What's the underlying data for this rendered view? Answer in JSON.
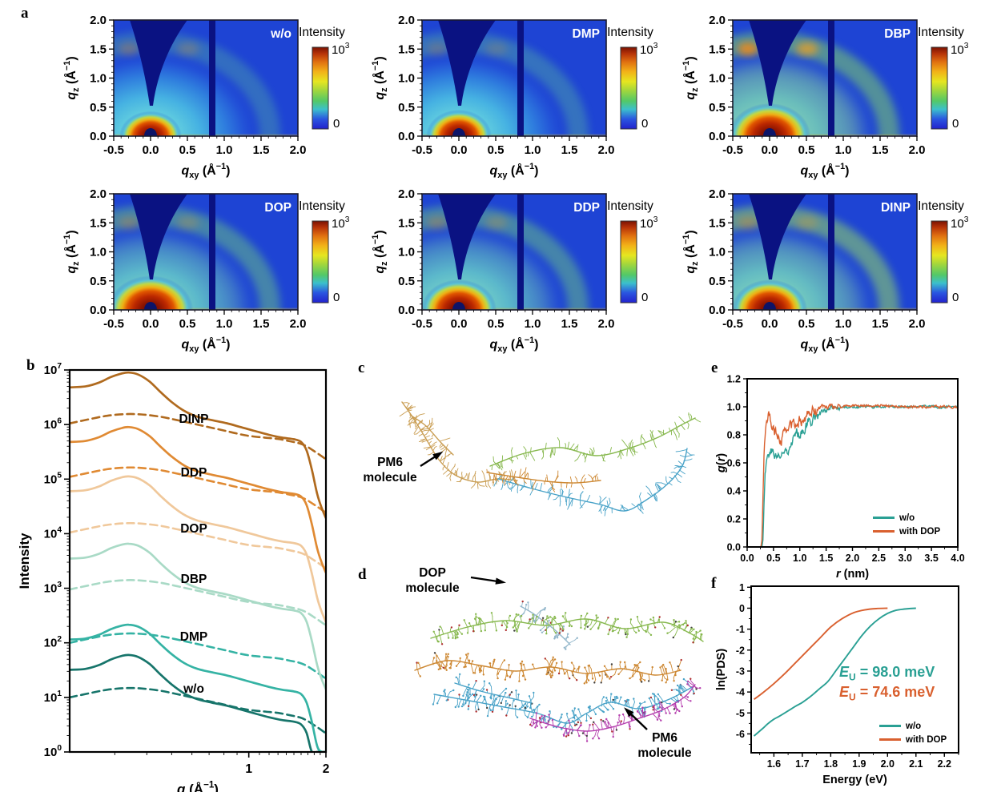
{
  "figure": {
    "panel_letters": {
      "a": "a",
      "b": "b",
      "c": "c",
      "d": "d",
      "e": "e",
      "f": "f"
    }
  },
  "giwaxs": {
    "samples": [
      "w/o",
      "DMP",
      "DBP",
      "DOP",
      "DDP",
      "DINP"
    ],
    "colorbar": {
      "title": "Intensity",
      "max_mantissa": "10",
      "max_exponent": "3",
      "min_label": "0"
    },
    "x_tick_labels": [
      "-0.5",
      "0.0",
      "0.5",
      "1.0",
      "1.5",
      "2.0"
    ],
    "y_tick_labels": [
      "0.0",
      "0.5",
      "1.0",
      "1.5",
      "2.0"
    ],
    "xlabel_parts": [
      [
        "q",
        "i"
      ],
      [
        "xy",
        "sub"
      ],
      [
        " (Å",
        "n"
      ],
      [
        "−1",
        "sup"
      ],
      [
        ")",
        "n"
      ]
    ],
    "ylabel_parts": [
      [
        "q",
        "i"
      ],
      [
        "z",
        "sub"
      ],
      [
        " (Å",
        "n"
      ],
      [
        "−1",
        "sup"
      ],
      [
        ")",
        "n"
      ]
    ]
  },
  "panel_c": {
    "annotation_line1": "PM6",
    "annotation_line2": "molecule"
  },
  "panel_d": {
    "dop_line1": "DOP",
    "dop_line2": "molecule",
    "pm6_line1": "PM6",
    "pm6_line2": "molecule"
  },
  "chart_data": [
    {
      "type": "heatmap",
      "panel": "a",
      "plots": [
        "w/o",
        "DMP",
        "DBP",
        "DOP",
        "DDP",
        "DINP"
      ],
      "xlabel": "q_xy (Å^-1)",
      "ylabel": "q_z (Å^-1)",
      "xlim": [
        -0.5,
        2.0
      ],
      "ylim": [
        0.0,
        2.0
      ],
      "x_ticks": [
        -0.5,
        0.0,
        0.5,
        1.0,
        1.5,
        2.0
      ],
      "y_ticks": [
        0.0,
        0.5,
        1.0,
        1.5,
        2.0
      ],
      "colorbar": {
        "title": "Intensity",
        "min": 0,
        "max": 1000
      },
      "features": "2D GIWAXS maps: intense beam spot at origin, diffuse scattering halo near q≈1.6, detector wedge gap at top and vertical gap stripe at q_xy≈0.85"
    },
    {
      "type": "line",
      "panel": "b",
      "x_scale": "log",
      "y_scale": "log",
      "xlabel": "q (Å^-1)",
      "ylabel": "Intensity",
      "xlim": [
        0.2,
        2
      ],
      "ylim": [
        1,
        10000000
      ],
      "x_tick_labels": [
        "1",
        "2"
      ],
      "y_tick_exponents": [
        0,
        1,
        2,
        3,
        4,
        5,
        6,
        7
      ],
      "line_styles": [
        "solid",
        "dashed"
      ],
      "samples": [
        {
          "name": "w/o",
          "color": "#17756b",
          "solid_scale": 32,
          "dashed_scale": 10
        },
        {
          "name": "DMP",
          "color": "#35b3a4",
          "solid_scale": 115,
          "dashed_scale": 100
        },
        {
          "name": "DBP",
          "color": "#a9dac6",
          "solid_scale": 3500,
          "dashed_scale": 950
        },
        {
          "name": "DOP",
          "color": "#f0c89b",
          "solid_scale": 60000,
          "dashed_scale": 10500
        },
        {
          "name": "DDP",
          "color": "#e08a33",
          "solid_scale": 480000,
          "dashed_scale": 110000
        },
        {
          "name": "DINP",
          "color": "#b06a1e",
          "solid_scale": 4800000,
          "dashed_scale": 1050000
        }
      ],
      "shape_solid_rel": [
        [
          0.2,
          1.0
        ],
        [
          0.23,
          1.04
        ],
        [
          0.26,
          1.22
        ],
        [
          0.29,
          1.55
        ],
        [
          0.32,
          1.8
        ],
        [
          0.34,
          1.87
        ],
        [
          0.37,
          1.72
        ],
        [
          0.41,
          1.28
        ],
        [
          0.45,
          0.84
        ],
        [
          0.5,
          0.54
        ],
        [
          0.56,
          0.37
        ],
        [
          0.63,
          0.29
        ],
        [
          0.72,
          0.25
        ],
        [
          0.82,
          0.22
        ],
        [
          0.92,
          0.19
        ],
        [
          1.05,
          0.16
        ],
        [
          1.2,
          0.135
        ],
        [
          1.35,
          0.12
        ],
        [
          1.5,
          0.112
        ],
        [
          1.6,
          0.1
        ],
        [
          1.68,
          0.07
        ],
        [
          1.76,
          0.032
        ],
        [
          1.85,
          0.011
        ],
        [
          1.93,
          0.006
        ],
        [
          2.0,
          0.004
        ]
      ],
      "shape_dashed_rel": [
        [
          0.2,
          1.0
        ],
        [
          0.24,
          1.2
        ],
        [
          0.28,
          1.38
        ],
        [
          0.33,
          1.48
        ],
        [
          0.38,
          1.46
        ],
        [
          0.45,
          1.33
        ],
        [
          0.52,
          1.16
        ],
        [
          0.6,
          1.0
        ],
        [
          0.7,
          0.85
        ],
        [
          0.8,
          0.74
        ],
        [
          0.9,
          0.65
        ],
        [
          1.0,
          0.59
        ],
        [
          1.15,
          0.55
        ],
        [
          1.3,
          0.52
        ],
        [
          1.45,
          0.47
        ],
        [
          1.58,
          0.43
        ],
        [
          1.68,
          0.38
        ],
        [
          1.78,
          0.32
        ],
        [
          1.88,
          0.27
        ],
        [
          2.0,
          0.22
        ]
      ],
      "xlabel_parts": [
        [
          "q",
          "bi"
        ],
        [
          " (Å",
          "b"
        ],
        [
          "−1",
          "bsup"
        ],
        [
          ")",
          "b"
        ]
      ],
      "ylabel_parts": [
        [
          "Intensity",
          "b"
        ]
      ]
    },
    {
      "type": "line",
      "panel": "e",
      "xlabel": "r (nm)",
      "ylabel": "g(r)",
      "xlim": [
        0,
        4
      ],
      "ylim": [
        0,
        1.2
      ],
      "x_tick_labels": [
        "0.0",
        "0.5",
        "1.0",
        "1.5",
        "2.0",
        "2.5",
        "3.0",
        "3.5",
        "4.0"
      ],
      "y_tick_labels": [
        "0.0",
        "0.2",
        "0.4",
        "0.6",
        "0.8",
        "1.0",
        "1.2"
      ],
      "legend_position": "bottom-right",
      "legend": [
        {
          "label": "w/o",
          "color": "#2aa094"
        },
        {
          "label": "with DOP",
          "color": "#d9602f"
        }
      ],
      "series": [
        {
          "name": "w/o",
          "color": "#2aa094",
          "points": [
            [
              0,
              0
            ],
            [
              0.28,
              0
            ],
            [
              0.3,
              0.05
            ],
            [
              0.32,
              0.3
            ],
            [
              0.34,
              0.52
            ],
            [
              0.37,
              0.62
            ],
            [
              0.4,
              0.66
            ],
            [
              0.44,
              0.7
            ],
            [
              0.48,
              0.68
            ],
            [
              0.52,
              0.65
            ],
            [
              0.56,
              0.64
            ],
            [
              0.6,
              0.66
            ],
            [
              0.64,
              0.64
            ],
            [
              0.68,
              0.66
            ],
            [
              0.72,
              0.69
            ],
            [
              0.76,
              0.7
            ],
            [
              0.8,
              0.73
            ],
            [
              0.85,
              0.76
            ],
            [
              0.9,
              0.79
            ],
            [
              0.95,
              0.81
            ],
            [
              1.0,
              0.82
            ],
            [
              1.05,
              0.84
            ],
            [
              1.1,
              0.86
            ],
            [
              1.2,
              0.9
            ],
            [
              1.3,
              0.94
            ],
            [
              1.4,
              0.96
            ],
            [
              1.5,
              0.975
            ],
            [
              1.6,
              0.985
            ],
            [
              1.8,
              0.995
            ],
            [
              2.0,
              1.0
            ],
            [
              2.5,
              1.0
            ],
            [
              3.0,
              1.0
            ],
            [
              3.5,
              1.0
            ],
            [
              4.0,
              1.0
            ]
          ]
        },
        {
          "name": "with DOP",
          "color": "#d9602f",
          "points": [
            [
              0,
              0
            ],
            [
              0.26,
              0
            ],
            [
              0.28,
              0.05
            ],
            [
              0.3,
              0.35
            ],
            [
              0.32,
              0.65
            ],
            [
              0.34,
              0.82
            ],
            [
              0.37,
              0.9
            ],
            [
              0.4,
              0.93
            ],
            [
              0.43,
              0.94
            ],
            [
              0.46,
              0.89
            ],
            [
              0.5,
              0.85
            ],
            [
              0.55,
              0.81
            ],
            [
              0.6,
              0.78
            ],
            [
              0.65,
              0.77
            ],
            [
              0.7,
              0.8
            ],
            [
              0.75,
              0.83
            ],
            [
              0.8,
              0.85
            ],
            [
              0.85,
              0.87
            ],
            [
              0.9,
              0.88
            ],
            [
              0.95,
              0.89
            ],
            [
              1.0,
              0.9
            ],
            [
              1.1,
              0.93
            ],
            [
              1.2,
              0.95
            ],
            [
              1.3,
              0.98
            ],
            [
              1.4,
              1.0
            ],
            [
              1.5,
              1.0
            ],
            [
              1.7,
              1.0
            ],
            [
              2.0,
              1.01
            ],
            [
              2.5,
              1.01
            ],
            [
              3.0,
              1.0
            ],
            [
              3.5,
              1.0
            ],
            [
              4.0,
              1.0
            ]
          ]
        }
      ],
      "xlabel_parts": [
        [
          "r",
          "bi"
        ],
        [
          " (nm)",
          "b"
        ]
      ],
      "ylabel_parts": [
        [
          "g",
          "bi"
        ],
        [
          "(",
          "b"
        ],
        [
          "r",
          "bi"
        ],
        [
          ")",
          "b"
        ]
      ]
    },
    {
      "type": "line",
      "panel": "f",
      "xlabel": "Energy (eV)",
      "ylabel": "ln(PDS)",
      "xlim": [
        1.52,
        2.25
      ],
      "ylim": [
        -6.9,
        1.05
      ],
      "x_tick_labels": [
        "1.6",
        "1.7",
        "1.8",
        "1.9",
        "2.0",
        "2.1",
        "2.2"
      ],
      "y_tick_labels": [
        "1",
        "0",
        "-1",
        "-2",
        "-3",
        "-4",
        "-5",
        "-6"
      ],
      "annotations": [
        {
          "sym": "E",
          "sub": "U",
          "rest": " = 98.0 meV",
          "color": "#2aa094"
        },
        {
          "sym": "E",
          "sub": "U",
          "rest": " = 74.6 meV",
          "color": "#d9602f"
        }
      ],
      "legend": [
        {
          "label": "w/o",
          "color": "#2aa094"
        },
        {
          "label": "with DOP",
          "color": "#d9602f"
        }
      ],
      "series": [
        {
          "name": "w/o",
          "color": "#2aa094",
          "points": [
            [
              1.53,
              -6.1
            ],
            [
              1.56,
              -5.75
            ],
            [
              1.58,
              -5.5
            ],
            [
              1.6,
              -5.3
            ],
            [
              1.62,
              -5.15
            ],
            [
              1.65,
              -4.9
            ],
            [
              1.68,
              -4.65
            ],
            [
              1.7,
              -4.5
            ],
            [
              1.73,
              -4.2
            ],
            [
              1.76,
              -3.85
            ],
            [
              1.79,
              -3.5
            ],
            [
              1.82,
              -2.95
            ],
            [
              1.85,
              -2.4
            ],
            [
              1.88,
              -1.85
            ],
            [
              1.91,
              -1.3
            ],
            [
              1.94,
              -0.85
            ],
            [
              1.97,
              -0.5
            ],
            [
              2.0,
              -0.25
            ],
            [
              2.03,
              -0.1
            ],
            [
              2.06,
              -0.04
            ],
            [
              2.1,
              0.0
            ]
          ]
        },
        {
          "name": "with DOP",
          "color": "#d9602f",
          "points": [
            [
              1.53,
              -4.35
            ],
            [
              1.56,
              -4.05
            ],
            [
              1.6,
              -3.6
            ],
            [
              1.64,
              -3.1
            ],
            [
              1.68,
              -2.55
            ],
            [
              1.72,
              -2.0
            ],
            [
              1.76,
              -1.45
            ],
            [
              1.8,
              -0.9
            ],
            [
              1.84,
              -0.5
            ],
            [
              1.88,
              -0.22
            ],
            [
              1.92,
              -0.08
            ],
            [
              1.96,
              -0.02
            ],
            [
              2.0,
              0.0
            ]
          ]
        }
      ],
      "xlabel_parts": [
        [
          "Energy (eV)",
          "b"
        ]
      ],
      "ylabel_parts": [
        [
          "ln(PDS)",
          "b"
        ]
      ]
    }
  ]
}
